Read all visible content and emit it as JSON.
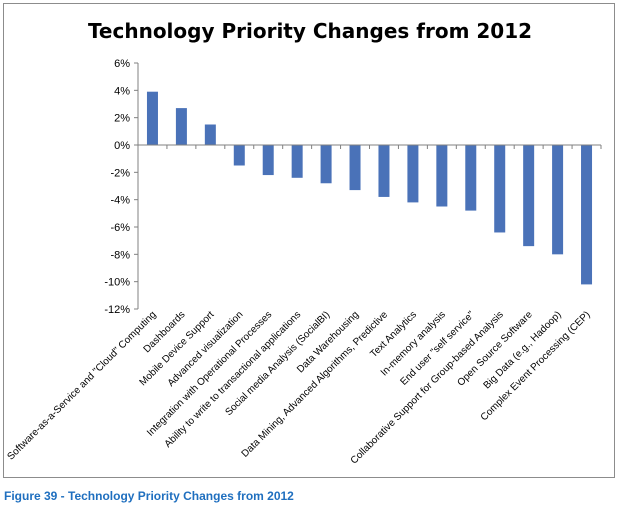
{
  "caption": "Figure 39 - Technology Priority Changes from 2012",
  "colors": {
    "bar": "#4a72b8",
    "axis": "#808080",
    "frame": "#8c8c8c",
    "caption": "#1f6fbf"
  },
  "chart_data": {
    "type": "bar",
    "title": "Technology Priority Changes from 2012",
    "xlabel": "",
    "ylabel": "",
    "ylim": [
      -12,
      6
    ],
    "yticks": [
      6,
      4,
      2,
      0,
      -2,
      -4,
      -6,
      -8,
      -10,
      -12
    ],
    "ytick_labels": [
      "6%",
      "4%",
      "2%",
      "0%",
      "-2%",
      "-4%",
      "-6%",
      "-8%",
      "-10%",
      "-12%"
    ],
    "grid": false,
    "legend": "none",
    "categories": [
      "Software-as-a-Service and \"Cloud\" Computing",
      "Dashboards",
      "Mobile Device Support",
      "Advanced visualization",
      "Integration with Operational Processes",
      "Ability to write to transactional applications",
      "Social media Analysis (SocialBI)",
      "Data Warehousing",
      "Data Mining, Advanced Algorithms, Predictive",
      "Text Analytics",
      "In-memory analysis",
      "End user \"self service\"",
      "Collaborative Support for Group-based Analysis",
      "Open Source Software",
      "Big Data (e.g., Hadoop)",
      "Complex Event Processing (CEP)"
    ],
    "values": [
      3.9,
      2.7,
      1.5,
      -1.5,
      -2.2,
      -2.4,
      -2.8,
      -3.3,
      -3.8,
      -4.2,
      -4.5,
      -4.8,
      -6.4,
      -7.4,
      -8.0,
      -10.2
    ]
  }
}
